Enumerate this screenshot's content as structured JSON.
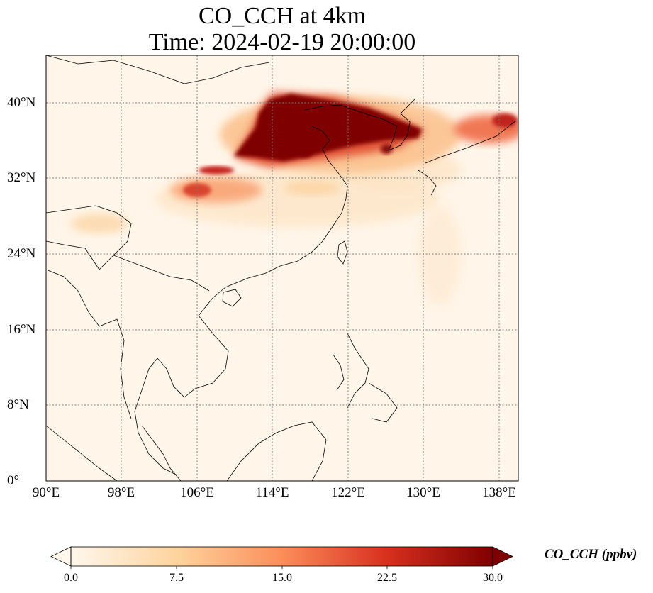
{
  "title": {
    "line1": "CO_CCH at 4km",
    "line2": "Time: 2024-02-19 20:00:00"
  },
  "map": {
    "lon_range": [
      90,
      140
    ],
    "lat_range": [
      0,
      45
    ],
    "gridline_style": "dotted gray",
    "projection": "PlateCarree"
  },
  "axes": {
    "y_ticks": [
      {
        "value": 0,
        "label": "0°"
      },
      {
        "value": 8,
        "label": "8°N"
      },
      {
        "value": 16,
        "label": "16°N"
      },
      {
        "value": 24,
        "label": "24°N"
      },
      {
        "value": 32,
        "label": "32°N"
      },
      {
        "value": 40,
        "label": "40°N"
      }
    ],
    "x_ticks": [
      {
        "value": 90,
        "label": "90°E"
      },
      {
        "value": 98,
        "label": "98°E"
      },
      {
        "value": 106,
        "label": "106°E"
      },
      {
        "value": 114,
        "label": "114°E"
      },
      {
        "value": 122,
        "label": "122°E"
      },
      {
        "value": 130,
        "label": "130°E"
      },
      {
        "value": 138,
        "label": "138°E"
      }
    ]
  },
  "colorbar": {
    "label": "CO_CCH (ppbv)",
    "colormap": "OrRd",
    "extend": "both",
    "range": [
      0,
      30
    ],
    "ticks": [
      "0.0",
      "7.5",
      "15.0",
      "22.5",
      "30.0"
    ],
    "colors": [
      "#fff7ec",
      "#fdd49e",
      "#fc8d59",
      "#d7301f",
      "#7f0000"
    ]
  }
}
